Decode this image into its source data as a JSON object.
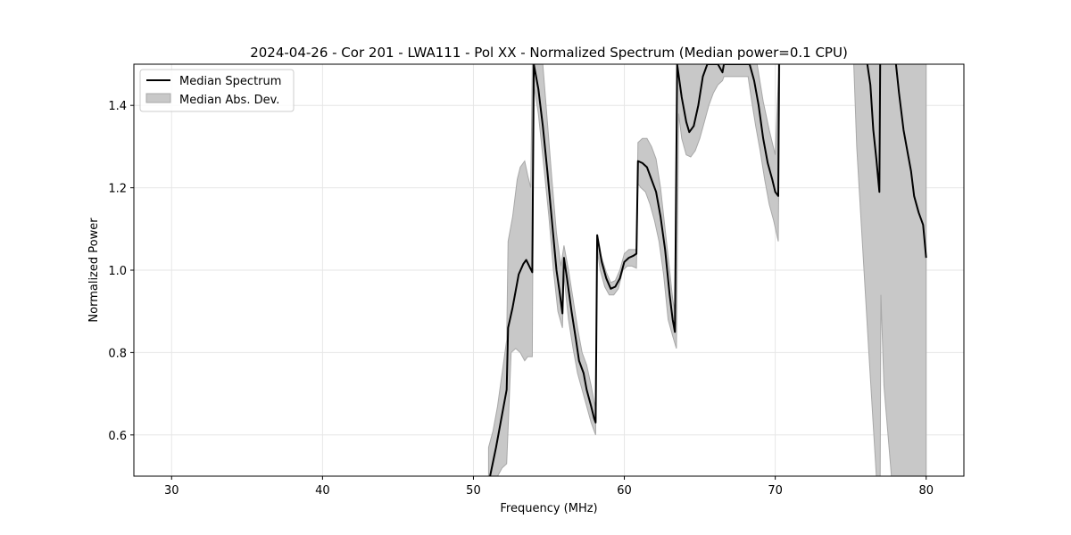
{
  "chart_data": {
    "type": "line",
    "title": "2024-04-26 - Cor 201 - LWA111 - Pol XX - Normalized Spectrum (Median power=0.1 CPU)",
    "xlabel": "Frequency (MHz)",
    "ylabel": "Normalized Power",
    "xlim": [
      27.5,
      82.5
    ],
    "ylim": [
      0.5,
      1.5
    ],
    "xticks": [
      30,
      40,
      50,
      60,
      70,
      80
    ],
    "yticks": [
      0.6,
      0.8,
      1.0,
      1.2,
      1.4
    ],
    "xtick_labels": [
      "30",
      "40",
      "50",
      "60",
      "70",
      "80"
    ],
    "ytick_labels": [
      "0.6",
      "0.8",
      "1.0",
      "1.2",
      "1.4"
    ],
    "grid": true,
    "legend": {
      "placement": "upper-left",
      "entries": [
        "Median Spectrum",
        "Median Abs. Dev."
      ]
    },
    "series": [
      {
        "name": "Median Spectrum",
        "color": "#000000",
        "points": [
          [
            51.1,
            0.5
          ],
          [
            51.5,
            0.57
          ],
          [
            51.8,
            0.63
          ],
          [
            52.2,
            0.71
          ],
          [
            52.3,
            0.86
          ],
          [
            52.6,
            0.91
          ],
          [
            52.8,
            0.95
          ],
          [
            53.0,
            0.99
          ],
          [
            53.3,
            1.015
          ],
          [
            53.5,
            1.025
          ],
          [
            53.7,
            1.01
          ],
          [
            53.9,
            0.995
          ],
          [
            54.0,
            1.5
          ],
          [
            54.3,
            1.44
          ],
          [
            54.6,
            1.35
          ],
          [
            54.9,
            1.24
          ],
          [
            55.2,
            1.12
          ],
          [
            55.5,
            1.0
          ],
          [
            55.7,
            0.95
          ],
          [
            55.9,
            0.895
          ],
          [
            56.0,
            1.03
          ],
          [
            56.2,
            0.98
          ],
          [
            56.5,
            0.9
          ],
          [
            56.8,
            0.83
          ],
          [
            57.0,
            0.78
          ],
          [
            57.3,
            0.75
          ],
          [
            57.5,
            0.71
          ],
          [
            57.8,
            0.67
          ],
          [
            58.0,
            0.64
          ],
          [
            58.1,
            0.63
          ],
          [
            58.2,
            1.085
          ],
          [
            58.5,
            1.02
          ],
          [
            58.8,
            0.98
          ],
          [
            59.1,
            0.955
          ],
          [
            59.4,
            0.96
          ],
          [
            59.7,
            0.98
          ],
          [
            60.0,
            1.02
          ],
          [
            60.3,
            1.03
          ],
          [
            60.6,
            1.035
          ],
          [
            60.8,
            1.04
          ],
          [
            60.9,
            1.265
          ],
          [
            61.2,
            1.26
          ],
          [
            61.5,
            1.25
          ],
          [
            61.8,
            1.22
          ],
          [
            62.1,
            1.19
          ],
          [
            62.4,
            1.13
          ],
          [
            62.7,
            1.05
          ],
          [
            63.0,
            0.94
          ],
          [
            63.2,
            0.88
          ],
          [
            63.35,
            0.85
          ],
          [
            63.5,
            1.5
          ],
          [
            63.8,
            1.42
          ],
          [
            64.1,
            1.36
          ],
          [
            64.3,
            1.335
          ],
          [
            64.6,
            1.35
          ],
          [
            64.9,
            1.4
          ],
          [
            65.2,
            1.47
          ],
          [
            65.5,
            1.5
          ],
          [
            66.2,
            1.5
          ],
          [
            66.5,
            1.48
          ],
          [
            66.6,
            1.5
          ],
          [
            68.3,
            1.5
          ],
          [
            68.6,
            1.46
          ],
          [
            68.9,
            1.4
          ],
          [
            69.2,
            1.32
          ],
          [
            69.5,
            1.26
          ],
          [
            69.8,
            1.22
          ],
          [
            70.0,
            1.19
          ],
          [
            70.2,
            1.18
          ],
          [
            70.25,
            1.5
          ]
        ]
      },
      {
        "name": "Median Spectrum",
        "color": "#000000",
        "points": [
          [
            76.1,
            1.5
          ],
          [
            76.3,
            1.45
          ],
          [
            76.5,
            1.34
          ],
          [
            76.7,
            1.27
          ],
          [
            76.9,
            1.19
          ],
          [
            76.95,
            1.5
          ]
        ]
      },
      {
        "name": "Median Spectrum",
        "color": "#000000",
        "points": [
          [
            78.0,
            1.5
          ],
          [
            78.2,
            1.43
          ],
          [
            78.5,
            1.34
          ],
          [
            78.8,
            1.28
          ],
          [
            79.0,
            1.24
          ],
          [
            79.2,
            1.18
          ],
          [
            79.5,
            1.14
          ],
          [
            79.8,
            1.11
          ],
          [
            80.0,
            1.03
          ]
        ]
      }
    ],
    "bands": [
      {
        "name": "Median Abs. Dev.",
        "color": "#c8c8c8",
        "edge_color": "#a8a8a8",
        "upper": [
          [
            51.0,
            0.57
          ],
          [
            51.3,
            0.61
          ],
          [
            51.6,
            0.67
          ],
          [
            51.9,
            0.75
          ],
          [
            52.2,
            0.83
          ],
          [
            52.3,
            1.07
          ],
          [
            52.6,
            1.13
          ],
          [
            52.9,
            1.22
          ],
          [
            53.1,
            1.25
          ],
          [
            53.4,
            1.265
          ],
          [
            53.6,
            1.23
          ],
          [
            53.8,
            1.2
          ],
          [
            53.9,
            1.5
          ],
          [
            54.6,
            1.5
          ],
          [
            54.9,
            1.36
          ],
          [
            55.2,
            1.22
          ],
          [
            55.5,
            1.09
          ],
          [
            55.8,
            1.01
          ],
          [
            56.0,
            1.06
          ],
          [
            56.3,
            1.0
          ],
          [
            56.6,
            0.93
          ],
          [
            56.9,
            0.86
          ],
          [
            57.2,
            0.8
          ],
          [
            57.5,
            0.77
          ],
          [
            57.8,
            0.72
          ],
          [
            58.0,
            0.68
          ],
          [
            58.1,
            0.665
          ],
          [
            58.2,
            1.07
          ],
          [
            58.5,
            1.03
          ],
          [
            58.8,
            0.995
          ],
          [
            59.1,
            0.97
          ],
          [
            59.4,
            0.975
          ],
          [
            59.7,
            1.0
          ],
          [
            60.0,
            1.04
          ],
          [
            60.3,
            1.05
          ],
          [
            60.6,
            1.05
          ],
          [
            60.8,
            1.05
          ],
          [
            60.9,
            1.31
          ],
          [
            61.2,
            1.32
          ],
          [
            61.5,
            1.32
          ],
          [
            61.8,
            1.3
          ],
          [
            62.1,
            1.27
          ],
          [
            62.4,
            1.2
          ],
          [
            62.7,
            1.1
          ],
          [
            63.0,
            1.0
          ],
          [
            63.2,
            0.93
          ],
          [
            63.35,
            0.9
          ],
          [
            63.5,
            1.5
          ],
          [
            65.0,
            1.5
          ],
          [
            65.5,
            1.5
          ],
          [
            66.3,
            1.5
          ],
          [
            66.6,
            1.5
          ],
          [
            68.3,
            1.5
          ],
          [
            68.8,
            1.5
          ],
          [
            69.2,
            1.41
          ],
          [
            69.6,
            1.34
          ],
          [
            70.0,
            1.28
          ],
          [
            70.25,
            1.5
          ],
          [
            75.3,
            1.5
          ],
          [
            76.0,
            1.5
          ],
          [
            76.9,
            1.5
          ],
          [
            77.0,
            1.5
          ],
          [
            78.0,
            1.5
          ],
          [
            79.5,
            1.5
          ],
          [
            80.0,
            1.5
          ]
        ],
        "lower": [
          [
            80.0,
            0.5
          ],
          [
            77.7,
            0.5
          ],
          [
            77.2,
            0.72
          ],
          [
            77.0,
            0.94
          ],
          [
            76.95,
            0.5
          ],
          [
            76.7,
            0.5
          ],
          [
            76.2,
            0.8
          ],
          [
            75.8,
            1.05
          ],
          [
            75.4,
            1.3
          ],
          [
            75.2,
            1.5
          ],
          [
            70.3,
            1.5
          ],
          [
            70.2,
            1.07
          ],
          [
            69.9,
            1.12
          ],
          [
            69.6,
            1.16
          ],
          [
            69.3,
            1.22
          ],
          [
            69.0,
            1.29
          ],
          [
            68.7,
            1.35
          ],
          [
            68.4,
            1.42
          ],
          [
            68.2,
            1.47
          ],
          [
            66.6,
            1.47
          ],
          [
            66.5,
            1.46
          ],
          [
            66.2,
            1.45
          ],
          [
            65.9,
            1.43
          ],
          [
            65.6,
            1.4
          ],
          [
            65.3,
            1.36
          ],
          [
            65.0,
            1.32
          ],
          [
            64.7,
            1.29
          ],
          [
            64.4,
            1.275
          ],
          [
            64.1,
            1.28
          ],
          [
            63.8,
            1.32
          ],
          [
            63.6,
            1.38
          ],
          [
            63.45,
            0.81
          ],
          [
            63.2,
            0.84
          ],
          [
            62.9,
            0.88
          ],
          [
            62.6,
            0.99
          ],
          [
            62.3,
            1.07
          ],
          [
            62.0,
            1.12
          ],
          [
            61.7,
            1.16
          ],
          [
            61.4,
            1.19
          ],
          [
            61.1,
            1.2
          ],
          [
            60.9,
            1.21
          ],
          [
            60.8,
            1.005
          ],
          [
            60.5,
            1.01
          ],
          [
            60.2,
            1.01
          ],
          [
            59.9,
            1.0
          ],
          [
            59.6,
            0.955
          ],
          [
            59.3,
            0.94
          ],
          [
            59.0,
            0.94
          ],
          [
            58.7,
            0.96
          ],
          [
            58.4,
            1.0
          ],
          [
            58.2,
            1.05
          ],
          [
            58.1,
            0.6
          ],
          [
            57.8,
            0.63
          ],
          [
            57.5,
            0.67
          ],
          [
            57.2,
            0.71
          ],
          [
            56.9,
            0.75
          ],
          [
            56.6,
            0.81
          ],
          [
            56.3,
            0.88
          ],
          [
            56.1,
            0.95
          ],
          [
            56.0,
            0.99
          ],
          [
            55.9,
            0.86
          ],
          [
            55.6,
            0.9
          ],
          [
            55.3,
            1.0
          ],
          [
            55.0,
            1.13
          ],
          [
            54.7,
            1.24
          ],
          [
            54.3,
            1.38
          ],
          [
            54.0,
            1.45
          ],
          [
            53.9,
            0.79
          ],
          [
            53.6,
            0.79
          ],
          [
            53.4,
            0.78
          ],
          [
            53.1,
            0.8
          ],
          [
            52.8,
            0.81
          ],
          [
            52.5,
            0.8
          ],
          [
            52.2,
            0.53
          ],
          [
            51.9,
            0.52
          ],
          [
            51.6,
            0.5
          ],
          [
            51.0,
            0.5
          ]
        ]
      }
    ]
  }
}
